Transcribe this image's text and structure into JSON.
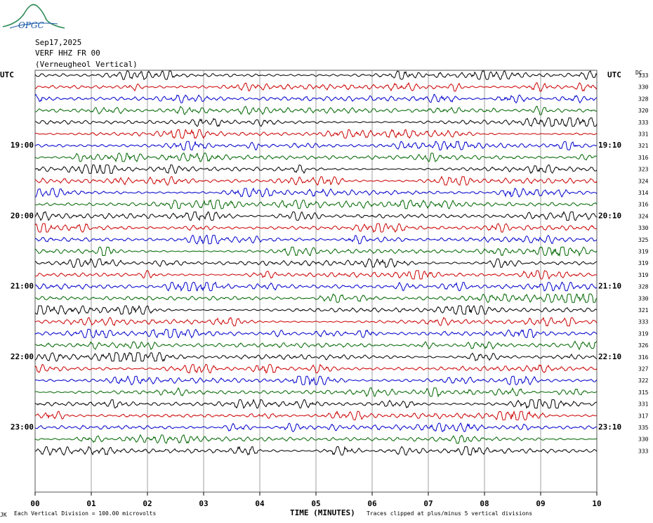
{
  "logo": {
    "text": "OPGC"
  },
  "header": {
    "date": "Sep17,2025",
    "station": "VERF HHZ FR 00",
    "location": "(Verneugheol Vertical)"
  },
  "left_label": "UTC",
  "right_label": "UTC",
  "dc_header": "DC",
  "left_hour_labels": [
    "19:00",
    "20:00",
    "21:00",
    "22:00",
    "23:00"
  ],
  "right_hour_labels": [
    "19:10",
    "20:10",
    "21:10",
    "22:10",
    "23:10"
  ],
  "footer": {
    "corner_mark": "JK",
    "vertical_division": "Each Vertical Division =  100.00 microvolts",
    "x_title": "TIME (MINUTES)",
    "clip_note": "Traces clipped at plus/minus 5 vertical divisions"
  },
  "colors": {
    "trace_cycle": [
      "#000000",
      "#cc0000",
      "#0000cc",
      "#006600"
    ],
    "grid": "#888888",
    "logo": "#1a5aa8",
    "logo_curve": "#2e8b57"
  },
  "chart_data": {
    "type": "line",
    "title": "",
    "xlabel": "TIME (MINUTES)",
    "ylabel": "UTC",
    "x_ticks": [
      "00",
      "01",
      "02",
      "03",
      "04",
      "05",
      "06",
      "07",
      "08",
      "09",
      "10"
    ],
    "xlim": [
      0,
      10
    ],
    "grid": true,
    "traces_per_hour": 6,
    "trace_count": 33,
    "dc_offsets": [
      333,
      330,
      328,
      320,
      333,
      331,
      321,
      316,
      323,
      324,
      314,
      316,
      324,
      330,
      325,
      319,
      319,
      319,
      328,
      330,
      321,
      333,
      319,
      326,
      316,
      327,
      322,
      315,
      331,
      317,
      335,
      330,
      333
    ]
  }
}
